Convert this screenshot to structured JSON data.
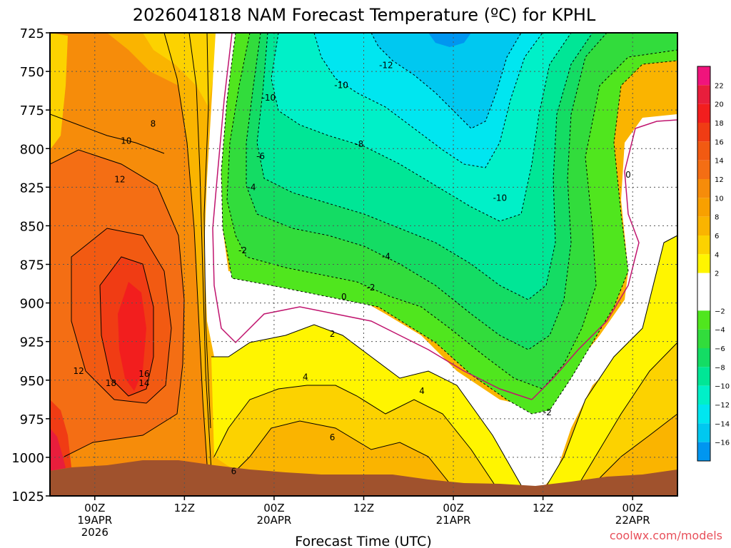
{
  "chart_data": {
    "type": "heatmap",
    "title": "2026041818 NAM Forecast Temperature (ºC) for KPHL",
    "xlabel": "Forecast Time (UTC)",
    "ylabel": "",
    "credit": "coolwx.com/models",
    "y_axis": {
      "levels": [
        725,
        750,
        775,
        800,
        825,
        850,
        875,
        900,
        925,
        950,
        975,
        1000,
        1025
      ],
      "labels": [
        "725",
        "750",
        "775",
        "800",
        "825",
        "850",
        "875",
        "900",
        "925",
        "950",
        "975",
        "1000",
        "1025"
      ],
      "range": [
        725,
        1025
      ]
    },
    "x_axis": {
      "range_hours": [
        -5,
        65
      ],
      "ticks": [
        {
          "hour": 0,
          "line1": "00Z",
          "line2": "19APR",
          "line3": "2026"
        },
        {
          "hour": 10,
          "line1": "12Z",
          "line2": "",
          "line3": ""
        },
        {
          "hour": 20,
          "line1": "00Z",
          "line2": "20APR",
          "line3": ""
        },
        {
          "hour": 30,
          "line1": "12Z",
          "line2": "",
          "line3": ""
        },
        {
          "hour": 40,
          "line1": "00Z",
          "line2": "21APR",
          "line3": ""
        },
        {
          "hour": 50,
          "line1": "12Z",
          "line2": "",
          "line3": ""
        },
        {
          "hour": 60,
          "line1": "00Z",
          "line2": "22APR",
          "line3": ""
        }
      ]
    },
    "colorbar": {
      "bands": [
        {
          "min": 22,
          "max": 24,
          "color": "#f0147c"
        },
        {
          "min": 20,
          "max": 22,
          "color": "#e81e3c"
        },
        {
          "min": 18,
          "max": 20,
          "color": "#f21e1e"
        },
        {
          "min": 16,
          "max": 18,
          "color": "#f03c14"
        },
        {
          "min": 14,
          "max": 16,
          "color": "#f25a12"
        },
        {
          "min": 12,
          "max": 14,
          "color": "#f46e14"
        },
        {
          "min": 10,
          "max": 12,
          "color": "#f68c0a"
        },
        {
          "min": 8,
          "max": 10,
          "color": "#f8a000"
        },
        {
          "min": 6,
          "max": 8,
          "color": "#fab400"
        },
        {
          "min": 4,
          "max": 6,
          "color": "#fcd200"
        },
        {
          "min": 2,
          "max": 4,
          "color": "#fff500"
        },
        {
          "min": -2,
          "max": 2,
          "color": "#ffffff"
        },
        {
          "min": -4,
          "max": -2,
          "color": "#50e61e"
        },
        {
          "min": -6,
          "max": -4,
          "color": "#32dc3c"
        },
        {
          "min": -8,
          "max": -6,
          "color": "#14dc64"
        },
        {
          "min": -10,
          "max": -8,
          "color": "#00e696"
        },
        {
          "min": -12,
          "max": -10,
          "color": "#00f0c8"
        },
        {
          "min": -14,
          "max": -12,
          "color": "#00e6f0"
        },
        {
          "min": -16,
          "max": -14,
          "color": "#00c8f0"
        },
        {
          "min": -18,
          "max": -16,
          "color": "#0096f0"
        }
      ],
      "tick_labels": [
        "22",
        "20",
        "18",
        "16",
        "14",
        "12",
        "10",
        "8",
        "6",
        "4",
        "2",
        "−2",
        "−4",
        "−6",
        "−8",
        "−10",
        "−12",
        "−14",
        "−16"
      ]
    },
    "contour_labels": [
      {
        "text": "8",
        "hour": 6.5,
        "p": 784
      },
      {
        "text": "10",
        "hour": 3.5,
        "p": 795
      },
      {
        "text": "12",
        "hour": 2.8,
        "p": 820
      },
      {
        "text": "12",
        "hour": -1.8,
        "p": 944
      },
      {
        "text": "16",
        "hour": 5.5,
        "p": 946
      },
      {
        "text": "14",
        "hour": 5.5,
        "p": 952
      },
      {
        "text": "18",
        "hour": 1.8,
        "p": 952
      },
      {
        "text": "-10",
        "hour": 19.4,
        "p": 767
      },
      {
        "text": "-10",
        "hour": 27.5,
        "p": 759
      },
      {
        "text": "-12",
        "hour": 32.5,
        "p": 746
      },
      {
        "text": "-8",
        "hour": 29.5,
        "p": 797
      },
      {
        "text": "-6",
        "hour": 18.5,
        "p": 805
      },
      {
        "text": "-4",
        "hour": 17.5,
        "p": 825
      },
      {
        "text": "-2",
        "hour": 16.5,
        "p": 866
      },
      {
        "text": "-4",
        "hour": 32.5,
        "p": 870
      },
      {
        "text": "-2",
        "hour": 30.8,
        "p": 890
      },
      {
        "text": "0",
        "hour": 27.8,
        "p": 896
      },
      {
        "text": "-10",
        "hour": 45.2,
        "p": 832
      },
      {
        "text": "0",
        "hour": 59.5,
        "p": 817
      },
      {
        "text": "2",
        "hour": 26.5,
        "p": 920
      },
      {
        "text": "4",
        "hour": 23.5,
        "p": 948
      },
      {
        "text": "4",
        "hour": 36.5,
        "p": 957
      },
      {
        "text": "6",
        "hour": 26.5,
        "p": 987
      },
      {
        "text": "6",
        "hour": 15.5,
        "p": 1009
      },
      {
        "text": "-2",
        "hour": 50.5,
        "p": 971
      }
    ]
  }
}
